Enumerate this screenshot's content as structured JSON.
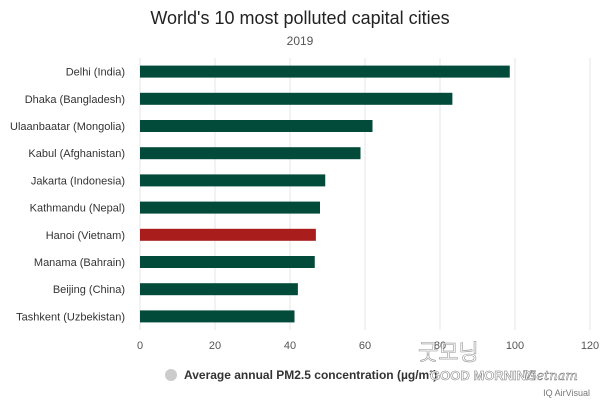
{
  "chart_data": {
    "type": "bar",
    "orientation": "horizontal",
    "title": "World's 10 most polluted capital cities",
    "subtitle": "2019",
    "categories": [
      "Delhi (India)",
      "Dhaka (Bangladesh)",
      "Ulaanbaatar (Mongolia)",
      "Kabul (Afghanistan)",
      "Jakarta (Indonesia)",
      "Kathmandu (Nepal)",
      "Hanoi (Vietnam)",
      "Manama (Bahrain)",
      "Beijing (China)",
      "Tashkent (Uzbekistan)"
    ],
    "series": [
      {
        "name": "Average annual PM2.5 concentration (µg/m³)",
        "values": [
          98.6,
          83.3,
          62.0,
          58.8,
          49.4,
          48.0,
          46.9,
          46.6,
          42.1,
          41.2
        ]
      }
    ],
    "xlim": [
      0,
      120
    ],
    "xticks": [
      0,
      20,
      40,
      60,
      80,
      100,
      120
    ],
    "grid": true,
    "legend_position": "bottom",
    "colors": {
      "bar": "#024a3a",
      "highlight": "#a91d1d",
      "grid": "#e6e6e6",
      "legend_marker": "#cccccc"
    },
    "highlight_category": "Hanoi (Vietnam)"
  },
  "source": "IQ AirVisual",
  "watermark": {
    "logo_text": "굿모닝",
    "brand": "GOOD MORNING",
    "script": "Vietnam"
  }
}
